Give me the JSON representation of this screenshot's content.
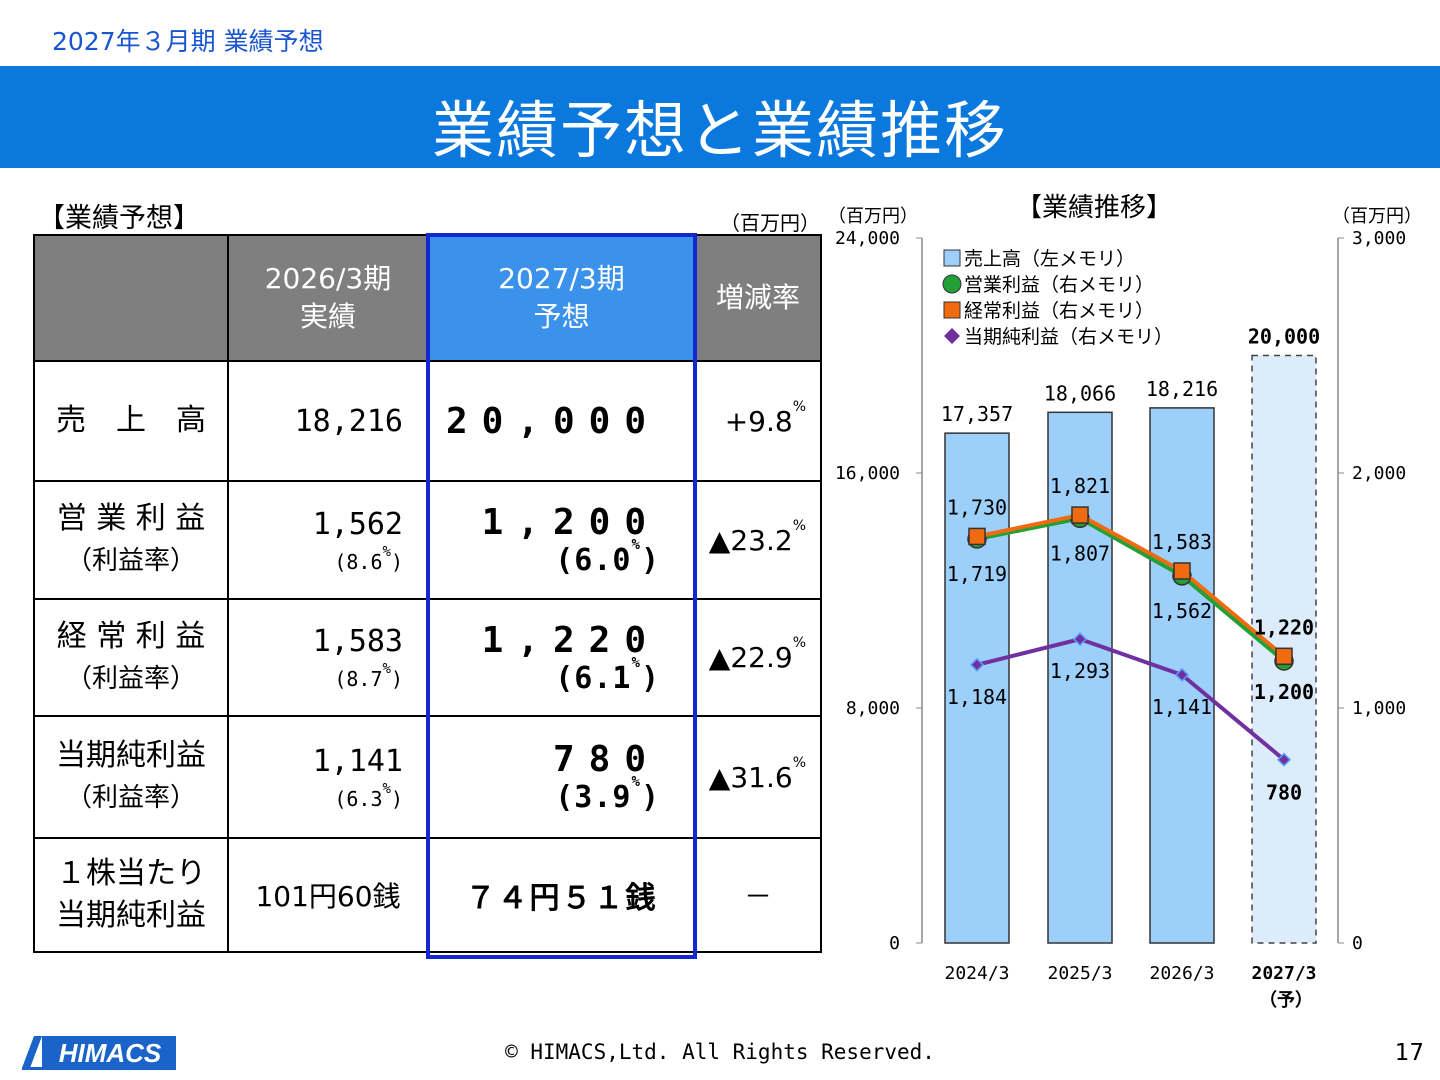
{
  "header": {
    "subtitle": "2027年３月期 業績予想",
    "title": "業績予想と業績推移"
  },
  "forecast": {
    "heading": "【業績予想】",
    "unit": "（百万円）",
    "columns": {
      "prev_line1": "2026/3期",
      "prev_line2": "実績",
      "cur_line1": "2027/3期",
      "cur_line2": "予想",
      "change": "増減率"
    },
    "rows": [
      {
        "metric": "売　上　高",
        "sub": "",
        "prev": "18,216",
        "prev_rate": "",
        "cur": "20,000",
        "cur_rate": "",
        "change": "+9.8",
        "pct": "%"
      },
      {
        "metric": "営 業 利 益",
        "sub": "（利益率）",
        "prev": "1,562",
        "prev_rate": "(8.6",
        "cur": "1,200",
        "cur_rate": "(6.0",
        "change": "▲23.2",
        "pct": "%"
      },
      {
        "metric": "経 常 利 益",
        "sub": "（利益率）",
        "prev": "1,583",
        "prev_rate": "(8.7",
        "cur": "1,220",
        "cur_rate": "(6.1",
        "change": "▲22.9",
        "pct": "%"
      },
      {
        "metric": "当期純利益",
        "sub": "（利益率）",
        "prev": "1,141",
        "prev_rate": "(6.3",
        "cur": "780",
        "cur_rate": "(3.9",
        "change": "▲31.6",
        "pct": "%"
      },
      {
        "metric": "１株当たり",
        "sub": "当期純利益",
        "prev": "101円60銭",
        "prev_rate": "",
        "cur": "７４円５１銭",
        "cur_rate": "",
        "change": "－",
        "pct": ""
      }
    ],
    "rate_close": ")",
    "pct_mark": "%"
  },
  "chart_data": {
    "type": "bar",
    "title": "【業績推移】",
    "left_axis_unit": "（百万円）",
    "right_axis_unit": "（百万円）",
    "categories": [
      "2024/3",
      "2025/3",
      "2026/3",
      "2027/3"
    ],
    "forecast_note": "（予）",
    "left_axis": {
      "range": [
        0,
        24000
      ],
      "ticks": [
        "0",
        "8,000",
        "16,000",
        "24,000"
      ]
    },
    "right_axis": {
      "range": [
        0,
        3000
      ],
      "ticks": [
        "0",
        "1,000",
        "2,000",
        "3,000"
      ]
    },
    "series": [
      {
        "name": "売上高（左メモリ）",
        "kind": "bar",
        "axis": "left",
        "color": "#9dcffb",
        "values": [
          17357,
          18066,
          18216,
          20000
        ],
        "labels": [
          "17,357",
          "18,066",
          "18,216",
          "20,000"
        ]
      },
      {
        "name": "営業利益（右メモリ）",
        "kind": "line",
        "axis": "right",
        "color": "#22a035",
        "values": [
          1719,
          1807,
          1562,
          1200
        ],
        "labels": [
          "1,719",
          "1,807",
          "1,562",
          "1,200"
        ]
      },
      {
        "name": "経常利益（右メモリ）",
        "kind": "line",
        "axis": "right",
        "color": "#f06a10",
        "values": [
          1730,
          1821,
          1583,
          1220
        ],
        "labels": [
          "1,730",
          "1,821",
          "1,583",
          "1,220"
        ]
      },
      {
        "name": "当期純利益（右メモリ）",
        "kind": "line",
        "axis": "right",
        "color": "#7030a0",
        "values": [
          1184,
          1293,
          1141,
          780
        ],
        "labels": [
          "1,184",
          "1,293",
          "1,141",
          "780"
        ]
      }
    ]
  },
  "footer": {
    "logo_text": "HIMACS",
    "copyright": "© HIMACS,Ltd. All Rights Reserved.",
    "page_number": "17"
  }
}
